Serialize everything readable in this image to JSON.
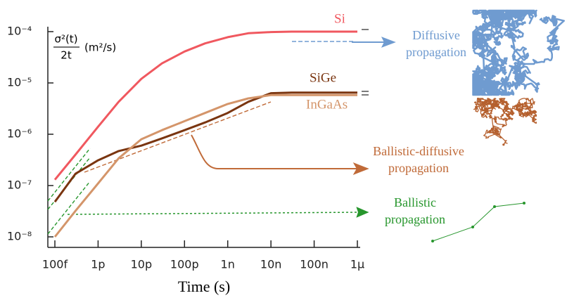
{
  "chart_data": {
    "type": "line",
    "x_label": "Time (s)",
    "y_label_numerator": "σ²(t)",
    "y_label_denominator": "2t",
    "y_label_unit": "(m²/s)",
    "x": [
      1e-13,
      3e-13,
      1e-12,
      3e-12,
      1e-11,
      3e-11,
      1e-10,
      3e-10,
      1e-09,
      3e-09,
      1e-08,
      3e-08,
      1e-07,
      3e-07,
      1e-06
    ],
    "series": [
      {
        "name": "Si",
        "color": "#f0585f",
        "values": [
          1.3e-07,
          4e-07,
          1.4e-06,
          4.3e-06,
          1.2e-05,
          2.4e-05,
          4.1e-05,
          5.9e-05,
          7.8e-05,
          9.3e-05,
          9.8e-05,
          0.0001,
          0.0001,
          0.0001,
          0.0001
        ]
      },
      {
        "name": "SiGe",
        "color": "#7a3510",
        "values": [
          4.8e-08,
          1.7e-07,
          3.1e-07,
          4.7e-07,
          6e-07,
          8.3e-07,
          1.2e-06,
          1.7e-06,
          2.6e-06,
          4.3e-06,
          6.3e-06,
          6.5e-06,
          6.5e-06,
          6.5e-06,
          6.5e-06
        ]
      },
      {
        "name": "InGaAs",
        "color": "#d4956a",
        "values": [
          1e-08,
          3.2e-08,
          1.1e-07,
          3.4e-07,
          8e-07,
          1.2e-06,
          1.8e-06,
          2.6e-06,
          3.9e-06,
          5e-06,
          5.8e-06,
          5.8e-06,
          5.8e-06,
          5.8e-06,
          5.8e-06
        ]
      }
    ],
    "xlim": [
      1e-13,
      1e-06
    ],
    "ylim": [
      1e-08,
      0.0001
    ],
    "log_x": true,
    "log_y": true,
    "xticks": [
      {
        "value": 1e-13,
        "label": "100f"
      },
      {
        "value": 1e-12,
        "label": "1p"
      },
      {
        "value": 1e-11,
        "label": "10p"
      },
      {
        "value": 1e-10,
        "label": "100p"
      },
      {
        "value": 1e-09,
        "label": "1n"
      },
      {
        "value": 1e-08,
        "label": "10n"
      },
      {
        "value": 1e-07,
        "label": "100n"
      },
      {
        "value": 1e-06,
        "label": "1μ"
      }
    ],
    "yticks": [
      {
        "value": 1e-08,
        "label": "10⁻⁸"
      },
      {
        "value": 1e-07,
        "label": "10⁻⁷"
      },
      {
        "value": 1e-06,
        "label": "10⁻⁶"
      },
      {
        "value": 1e-05,
        "label": "10⁻⁵"
      },
      {
        "value": 0.0001,
        "label": "10⁻⁴"
      }
    ],
    "annotations": [
      {
        "lines": [
          "Diffusive",
          "propagation"
        ],
        "color": "#6f9bd0"
      },
      {
        "lines": [
          "Ballistic-diffusive",
          "propagation"
        ],
        "color": "#c06a38"
      },
      {
        "lines": [
          "Ballistic",
          "propagation"
        ],
        "color": "#27962d"
      }
    ]
  }
}
